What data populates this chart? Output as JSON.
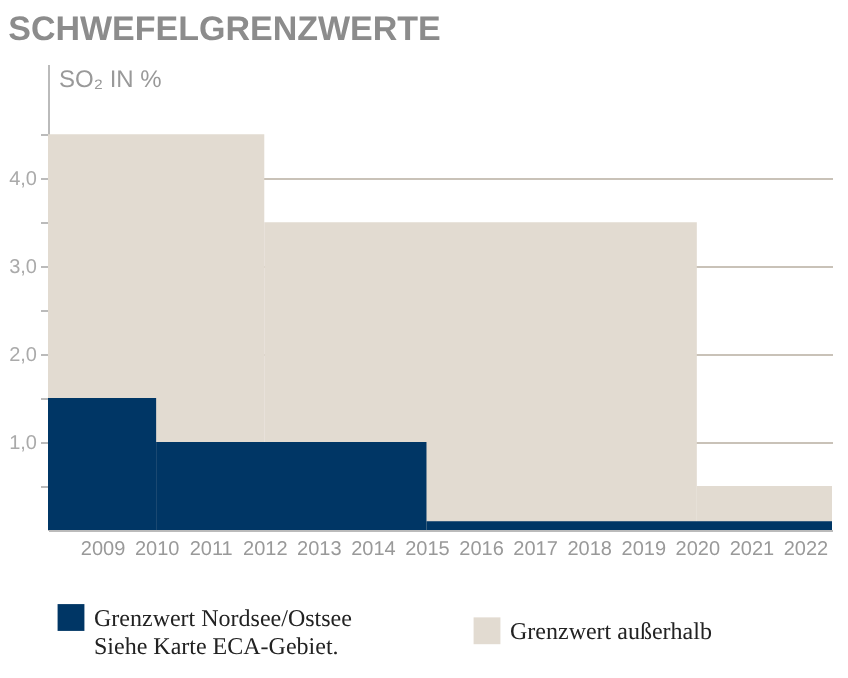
{
  "chart_data": {
    "type": "area",
    "title": "SCHWEFELGRENZWERTE",
    "ylabel": "SO₂ IN %",
    "series": [
      {
        "name": "Grenzwert Nordsee/Ostsee\nSiehe Karte ECA-Gebiet.",
        "color": "#003665",
        "x": [
          2008,
          2010,
          2015,
          2022.5
        ],
        "values": [
          1.5,
          1.0,
          0.1,
          0.1
        ]
      },
      {
        "name": "Grenzwert außerhalb",
        "color": "#e2dbd1",
        "x": [
          2008,
          2012,
          2020,
          2022.5
        ],
        "values": [
          4.5,
          3.5,
          0.5,
          0.5
        ]
      }
    ],
    "xlim": [
      2008,
      2022.5
    ],
    "xticks": [
      2009,
      2010,
      2011,
      2012,
      2013,
      2014,
      2015,
      2016,
      2017,
      2018,
      2019,
      2020,
      2021,
      2022
    ],
    "ylim": [
      0,
      5.3
    ],
    "yticks": [
      {
        "value": 0.5,
        "label": null
      },
      {
        "value": 1,
        "label": "1,0"
      },
      {
        "value": 1.5,
        "label": null
      },
      {
        "value": 2,
        "label": "2,0"
      },
      {
        "value": 2.5,
        "label": null
      },
      {
        "value": 3,
        "label": "3,0"
      },
      {
        "value": 3.5,
        "label": null
      },
      {
        "value": 4,
        "label": "4,0"
      },
      {
        "value": 4.5,
        "label": null
      }
    ],
    "grid": "y",
    "legend": "bottom",
    "line_style": "step"
  }
}
